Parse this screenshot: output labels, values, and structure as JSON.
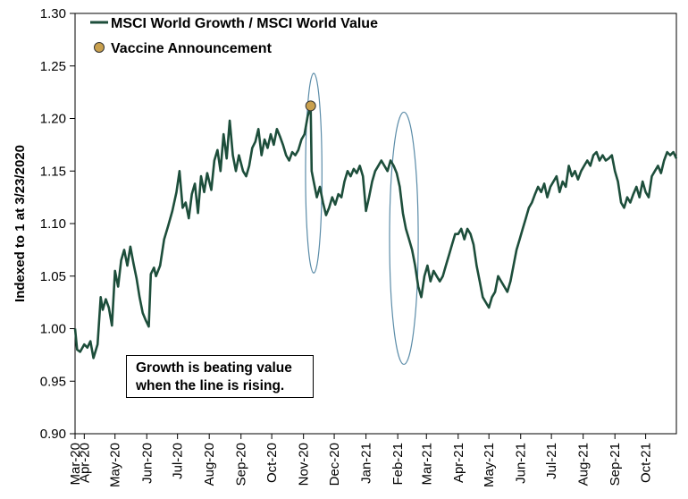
{
  "chart_data": {
    "type": "line",
    "ylabel": "Indexed to 1 at 3/23/2020",
    "ylim": [
      0.9,
      1.3
    ],
    "yticks": [
      "0.90",
      "0.95",
      "1.00",
      "1.05",
      "1.10",
      "1.15",
      "1.20",
      "1.25",
      "1.30"
    ],
    "xlim": [
      "2020-03-23",
      "2021-10-31"
    ],
    "xticks": [
      {
        "date": "2020-03-01",
        "label": "Mar-20"
      },
      {
        "date": "2020-04-01",
        "label": "Apr-20"
      },
      {
        "date": "2020-05-01",
        "label": "May-20"
      },
      {
        "date": "2020-06-01",
        "label": "Jun-20"
      },
      {
        "date": "2020-07-01",
        "label": "Jul-20"
      },
      {
        "date": "2020-08-01",
        "label": "Aug-20"
      },
      {
        "date": "2020-09-01",
        "label": "Sep-20"
      },
      {
        "date": "2020-10-01",
        "label": "Oct-20"
      },
      {
        "date": "2020-11-01",
        "label": "Nov-20"
      },
      {
        "date": "2020-12-01",
        "label": "Dec-20"
      },
      {
        "date": "2021-01-01",
        "label": "Jan-21"
      },
      {
        "date": "2021-02-01",
        "label": "Feb-21"
      },
      {
        "date": "2021-03-01",
        "label": "Mar-21"
      },
      {
        "date": "2021-04-01",
        "label": "Apr-21"
      },
      {
        "date": "2021-05-01",
        "label": "May-21"
      },
      {
        "date": "2021-06-01",
        "label": "Jun-21"
      },
      {
        "date": "2021-07-01",
        "label": "Jul-21"
      },
      {
        "date": "2021-08-01",
        "label": "Aug-21"
      },
      {
        "date": "2021-09-01",
        "label": "Sep-21"
      },
      {
        "date": "2021-10-01",
        "label": "Oct-21"
      }
    ],
    "grid": false,
    "legend_placement": "top-left",
    "series": [
      {
        "name": "MSCI World Growth / MSCI World Value",
        "color": "#1d4e3b",
        "points": [
          [
            "2020-03-23",
            1.0
          ],
          [
            "2020-03-25",
            0.98
          ],
          [
            "2020-03-28",
            0.978
          ],
          [
            "2020-04-01",
            0.985
          ],
          [
            "2020-04-04",
            0.982
          ],
          [
            "2020-04-07",
            0.988
          ],
          [
            "2020-04-10",
            0.972
          ],
          [
            "2020-04-14",
            0.985
          ],
          [
            "2020-04-17",
            1.03
          ],
          [
            "2020-04-19",
            1.018
          ],
          [
            "2020-04-22",
            1.028
          ],
          [
            "2020-04-25",
            1.02
          ],
          [
            "2020-04-28",
            1.003
          ],
          [
            "2020-05-01",
            1.055
          ],
          [
            "2020-05-04",
            1.04
          ],
          [
            "2020-05-07",
            1.065
          ],
          [
            "2020-05-10",
            1.075
          ],
          [
            "2020-05-13",
            1.06
          ],
          [
            "2020-05-16",
            1.078
          ],
          [
            "2020-05-19",
            1.062
          ],
          [
            "2020-05-22",
            1.048
          ],
          [
            "2020-05-25",
            1.03
          ],
          [
            "2020-05-28",
            1.015
          ],
          [
            "2020-05-31",
            1.008
          ],
          [
            "2020-06-03",
            1.002
          ],
          [
            "2020-06-05",
            1.052
          ],
          [
            "2020-06-08",
            1.058
          ],
          [
            "2020-06-10",
            1.05
          ],
          [
            "2020-06-14",
            1.06
          ],
          [
            "2020-06-18",
            1.085
          ],
          [
            "2020-06-22",
            1.098
          ],
          [
            "2020-06-26",
            1.112
          ],
          [
            "2020-06-30",
            1.13
          ],
          [
            "2020-07-03",
            1.15
          ],
          [
            "2020-07-06",
            1.115
          ],
          [
            "2020-07-09",
            1.12
          ],
          [
            "2020-07-12",
            1.105
          ],
          [
            "2020-07-15",
            1.128
          ],
          [
            "2020-07-18",
            1.138
          ],
          [
            "2020-07-21",
            1.11
          ],
          [
            "2020-07-24",
            1.145
          ],
          [
            "2020-07-27",
            1.13
          ],
          [
            "2020-07-30",
            1.148
          ],
          [
            "2020-08-03",
            1.132
          ],
          [
            "2020-08-06",
            1.16
          ],
          [
            "2020-08-09",
            1.17
          ],
          [
            "2020-08-12",
            1.15
          ],
          [
            "2020-08-15",
            1.185
          ],
          [
            "2020-08-18",
            1.162
          ],
          [
            "2020-08-21",
            1.198
          ],
          [
            "2020-08-24",
            1.165
          ],
          [
            "2020-08-27",
            1.15
          ],
          [
            "2020-08-30",
            1.165
          ],
          [
            "2020-09-03",
            1.15
          ],
          [
            "2020-09-06",
            1.145
          ],
          [
            "2020-09-09",
            1.155
          ],
          [
            "2020-09-12",
            1.172
          ],
          [
            "2020-09-15",
            1.178
          ],
          [
            "2020-09-18",
            1.19
          ],
          [
            "2020-09-21",
            1.165
          ],
          [
            "2020-09-24",
            1.18
          ],
          [
            "2020-09-27",
            1.172
          ],
          [
            "2020-09-30",
            1.185
          ],
          [
            "2020-10-03",
            1.175
          ],
          [
            "2020-10-06",
            1.19
          ],
          [
            "2020-10-09",
            1.183
          ],
          [
            "2020-10-12",
            1.175
          ],
          [
            "2020-10-15",
            1.165
          ],
          [
            "2020-10-18",
            1.16
          ],
          [
            "2020-10-21",
            1.168
          ],
          [
            "2020-10-24",
            1.165
          ],
          [
            "2020-10-27",
            1.17
          ],
          [
            "2020-10-30",
            1.18
          ],
          [
            "2020-11-02",
            1.185
          ],
          [
            "2020-11-05",
            1.202
          ],
          [
            "2020-11-08",
            1.212
          ],
          [
            "2020-11-09",
            1.15
          ],
          [
            "2020-11-11",
            1.14
          ],
          [
            "2020-11-14",
            1.125
          ],
          [
            "2020-11-17",
            1.135
          ],
          [
            "2020-11-20",
            1.12
          ],
          [
            "2020-11-23",
            1.108
          ],
          [
            "2020-11-26",
            1.115
          ],
          [
            "2020-11-29",
            1.125
          ],
          [
            "2020-12-02",
            1.118
          ],
          [
            "2020-12-05",
            1.128
          ],
          [
            "2020-12-08",
            1.125
          ],
          [
            "2020-12-11",
            1.14
          ],
          [
            "2020-12-14",
            1.15
          ],
          [
            "2020-12-17",
            1.145
          ],
          [
            "2020-12-20",
            1.152
          ],
          [
            "2020-12-23",
            1.148
          ],
          [
            "2020-12-26",
            1.155
          ],
          [
            "2020-12-29",
            1.145
          ],
          [
            "2021-01-01",
            1.112
          ],
          [
            "2021-01-04",
            1.125
          ],
          [
            "2021-01-07",
            1.14
          ],
          [
            "2021-01-10",
            1.15
          ],
          [
            "2021-01-13",
            1.155
          ],
          [
            "2021-01-16",
            1.16
          ],
          [
            "2021-01-19",
            1.155
          ],
          [
            "2021-01-22",
            1.15
          ],
          [
            "2021-01-25",
            1.16
          ],
          [
            "2021-01-28",
            1.155
          ],
          [
            "2021-01-31",
            1.148
          ],
          [
            "2021-02-03",
            1.135
          ],
          [
            "2021-02-06",
            1.11
          ],
          [
            "2021-02-09",
            1.095
          ],
          [
            "2021-02-12",
            1.085
          ],
          [
            "2021-02-15",
            1.075
          ],
          [
            "2021-02-18",
            1.06
          ],
          [
            "2021-02-21",
            1.04
          ],
          [
            "2021-02-24",
            1.03
          ],
          [
            "2021-02-27",
            1.05
          ],
          [
            "2021-03-02",
            1.06
          ],
          [
            "2021-03-05",
            1.045
          ],
          [
            "2021-03-08",
            1.055
          ],
          [
            "2021-03-11",
            1.05
          ],
          [
            "2021-03-14",
            1.045
          ],
          [
            "2021-03-17",
            1.05
          ],
          [
            "2021-03-20",
            1.06
          ],
          [
            "2021-03-23",
            1.07
          ],
          [
            "2021-03-26",
            1.08
          ],
          [
            "2021-03-29",
            1.09
          ],
          [
            "2021-04-01",
            1.09
          ],
          [
            "2021-04-04",
            1.095
          ],
          [
            "2021-04-07",
            1.085
          ],
          [
            "2021-04-10",
            1.095
          ],
          [
            "2021-04-13",
            1.09
          ],
          [
            "2021-04-16",
            1.08
          ],
          [
            "2021-04-19",
            1.06
          ],
          [
            "2021-04-22",
            1.045
          ],
          [
            "2021-04-25",
            1.03
          ],
          [
            "2021-04-28",
            1.025
          ],
          [
            "2021-05-01",
            1.02
          ],
          [
            "2021-05-04",
            1.03
          ],
          [
            "2021-05-07",
            1.035
          ],
          [
            "2021-05-10",
            1.05
          ],
          [
            "2021-05-13",
            1.045
          ],
          [
            "2021-05-16",
            1.04
          ],
          [
            "2021-05-19",
            1.035
          ],
          [
            "2021-05-22",
            1.045
          ],
          [
            "2021-05-25",
            1.06
          ],
          [
            "2021-05-28",
            1.075
          ],
          [
            "2021-05-31",
            1.085
          ],
          [
            "2021-06-03",
            1.095
          ],
          [
            "2021-06-06",
            1.105
          ],
          [
            "2021-06-09",
            1.115
          ],
          [
            "2021-06-12",
            1.12
          ],
          [
            "2021-06-15",
            1.128
          ],
          [
            "2021-06-18",
            1.135
          ],
          [
            "2021-06-21",
            1.13
          ],
          [
            "2021-06-24",
            1.138
          ],
          [
            "2021-06-27",
            1.125
          ],
          [
            "2021-06-30",
            1.135
          ],
          [
            "2021-07-03",
            1.14
          ],
          [
            "2021-07-06",
            1.145
          ],
          [
            "2021-07-09",
            1.13
          ],
          [
            "2021-07-12",
            1.14
          ],
          [
            "2021-07-15",
            1.135
          ],
          [
            "2021-07-18",
            1.155
          ],
          [
            "2021-07-21",
            1.145
          ],
          [
            "2021-07-24",
            1.15
          ],
          [
            "2021-07-27",
            1.142
          ],
          [
            "2021-07-30",
            1.15
          ],
          [
            "2021-08-02",
            1.155
          ],
          [
            "2021-08-05",
            1.16
          ],
          [
            "2021-08-08",
            1.155
          ],
          [
            "2021-08-11",
            1.165
          ],
          [
            "2021-08-14",
            1.168
          ],
          [
            "2021-08-17",
            1.16
          ],
          [
            "2021-08-20",
            1.165
          ],
          [
            "2021-08-23",
            1.16
          ],
          [
            "2021-08-26",
            1.162
          ],
          [
            "2021-08-29",
            1.165
          ],
          [
            "2021-09-01",
            1.15
          ],
          [
            "2021-09-04",
            1.14
          ],
          [
            "2021-09-07",
            1.12
          ],
          [
            "2021-09-10",
            1.115
          ],
          [
            "2021-09-13",
            1.125
          ],
          [
            "2021-09-16",
            1.12
          ],
          [
            "2021-09-19",
            1.128
          ],
          [
            "2021-09-22",
            1.135
          ],
          [
            "2021-09-25",
            1.125
          ],
          [
            "2021-09-28",
            1.14
          ],
          [
            "2021-10-01",
            1.13
          ],
          [
            "2021-10-04",
            1.125
          ],
          [
            "2021-10-07",
            1.145
          ],
          [
            "2021-10-10",
            1.15
          ],
          [
            "2021-10-13",
            1.155
          ],
          [
            "2021-10-16",
            1.148
          ],
          [
            "2021-10-19",
            1.16
          ],
          [
            "2021-10-22",
            1.168
          ],
          [
            "2021-10-25",
            1.165
          ],
          [
            "2021-10-28",
            1.168
          ],
          [
            "2021-10-31",
            1.162
          ]
        ]
      }
    ],
    "annotations": [
      {
        "type": "marker",
        "label": "Vaccine Announcement",
        "date": "2020-11-08",
        "value": 1.212,
        "color": "#c9a04e"
      },
      {
        "type": "ellipse",
        "center_date": "2020-11-11",
        "center_value": 1.148,
        "half_width_days": 8,
        "half_height": 0.095,
        "color": "#5b8ca8"
      },
      {
        "type": "ellipse",
        "center_date": "2021-02-07",
        "center_value": 1.086,
        "half_width_days": 14,
        "half_height": 0.12,
        "color": "#5b8ca8"
      }
    ],
    "note": {
      "line1": "Growth is beating value",
      "line2": "when the line is rising."
    }
  }
}
